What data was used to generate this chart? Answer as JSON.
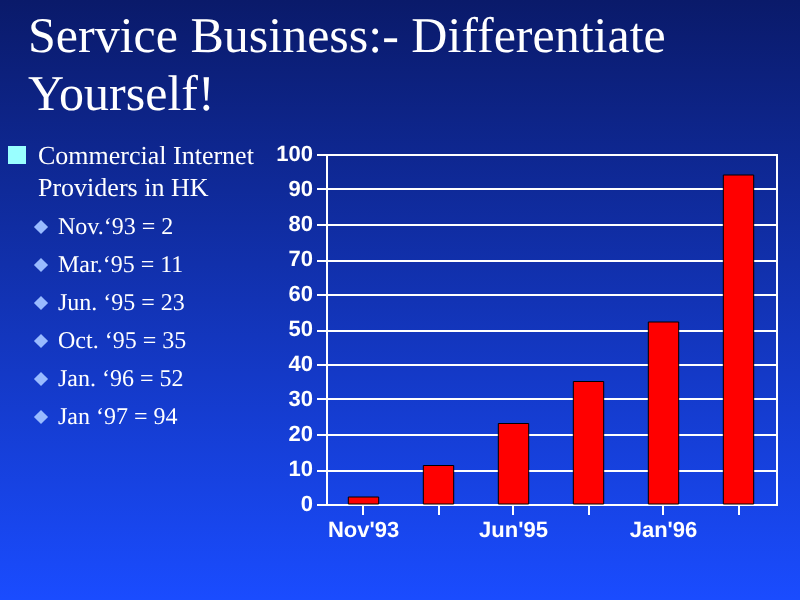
{
  "chart_data": {
    "type": "bar",
    "title": "Service Business:- Differentiate Yourself!",
    "categories": [
      "Nov'93",
      null,
      "Jun'95",
      null,
      "Jan'96",
      null
    ],
    "values": [
      2,
      11,
      23,
      35,
      52,
      94
    ],
    "color": "#ff0000",
    "ylim": [
      0,
      100
    ],
    "yticks": [
      0,
      10,
      20,
      30,
      40,
      50,
      60,
      70,
      80,
      90,
      100
    ],
    "grid": "y",
    "annotations": [
      "Commercial Internet Providers in HK",
      "Nov.‘93 = 2",
      "Mar.‘95 = 11",
      "Jun. ‘95 = 23",
      "Oct. ‘95 = 35",
      "Jan. ‘96 = 52",
      "Jan ‘97 = 94"
    ]
  }
}
